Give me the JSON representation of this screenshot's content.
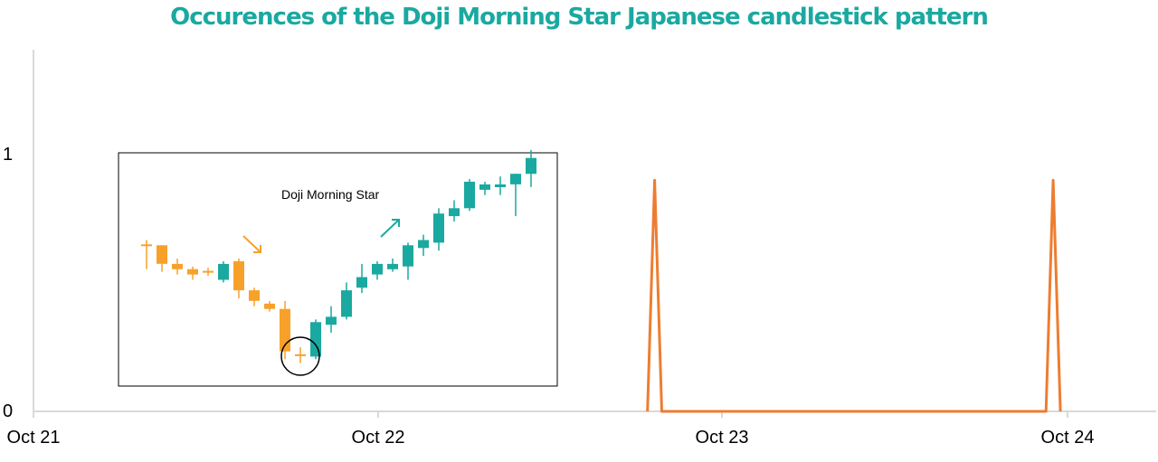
{
  "chart_data": {
    "type": "line",
    "title": "Occurences of the Doji Morning Star Japanese candlestick pattern",
    "x_tick_labels": [
      "Oct 21",
      "Oct 22",
      "Oct 23",
      "Oct 24"
    ],
    "y_tick_labels": [
      "0",
      "1"
    ],
    "ylim": [
      0,
      1.4
    ],
    "grid": false,
    "series": [
      {
        "color": "#ed7d31",
        "points": [
          {
            "x": "Oct 22 18:45",
            "y": 0
          },
          {
            "x": "Oct 22 19:15",
            "y": 0.9
          },
          {
            "x": "Oct 22 19:45",
            "y": 0
          },
          {
            "x": "Oct 23 22:30",
            "y": 0
          },
          {
            "x": "Oct 23 23:00",
            "y": 0.9
          },
          {
            "x": "Oct 23 23:30",
            "y": 0
          }
        ]
      }
    ],
    "inset": {
      "label": "Doji Morning Star",
      "colors": {
        "bearish": "#f7a12a",
        "bullish": "#1aa9a0",
        "frame": "#000000"
      },
      "candles": [
        {
          "o": 0.62,
          "c": 0.62,
          "h": 0.64,
          "l": 0.53
        },
        {
          "o": 0.62,
          "c": 0.55,
          "h": 0.62,
          "l": 0.52
        },
        {
          "o": 0.55,
          "c": 0.53,
          "h": 0.57,
          "l": 0.51
        },
        {
          "o": 0.53,
          "c": 0.51,
          "h": 0.54,
          "l": 0.49
        },
        {
          "o": 0.52,
          "c": 0.52,
          "h": 0.535,
          "l": 0.505
        },
        {
          "o": 0.49,
          "c": 0.55,
          "h": 0.56,
          "l": 0.48
        },
        {
          "o": 0.56,
          "c": 0.45,
          "h": 0.57,
          "l": 0.42
        },
        {
          "o": 0.45,
          "c": 0.41,
          "h": 0.46,
          "l": 0.39
        },
        {
          "o": 0.4,
          "c": 0.38,
          "h": 0.41,
          "l": 0.37
        },
        {
          "o": 0.38,
          "c": 0.22,
          "h": 0.41,
          "l": 0.19
        },
        {
          "o": 0.205,
          "c": 0.205,
          "h": 0.235,
          "l": 0.175
        },
        {
          "o": 0.2,
          "c": 0.33,
          "h": 0.34,
          "l": 0.19
        },
        {
          "o": 0.32,
          "c": 0.35,
          "h": 0.39,
          "l": 0.29
        },
        {
          "o": 0.35,
          "c": 0.45,
          "h": 0.48,
          "l": 0.34
        },
        {
          "o": 0.46,
          "c": 0.5,
          "h": 0.55,
          "l": 0.44
        },
        {
          "o": 0.51,
          "c": 0.55,
          "h": 0.56,
          "l": 0.49
        },
        {
          "o": 0.55,
          "c": 0.53,
          "h": 0.57,
          "l": 0.52
        },
        {
          "o": 0.54,
          "c": 0.62,
          "h": 0.63,
          "l": 0.49
        },
        {
          "o": 0.61,
          "c": 0.64,
          "h": 0.66,
          "l": 0.58
        },
        {
          "o": 0.63,
          "c": 0.74,
          "h": 0.76,
          "l": 0.6
        },
        {
          "o": 0.73,
          "c": 0.76,
          "h": 0.79,
          "l": 0.71
        },
        {
          "o": 0.76,
          "c": 0.86,
          "h": 0.87,
          "l": 0.75
        },
        {
          "o": 0.83,
          "c": 0.85,
          "h": 0.86,
          "l": 0.81
        },
        {
          "o": 0.84,
          "c": 0.85,
          "h": 0.88,
          "l": 0.81
        },
        {
          "o": 0.85,
          "c": 0.89,
          "h": 0.89,
          "l": 0.73
        },
        {
          "o": 0.89,
          "c": 0.95,
          "h": 0.98,
          "l": 0.84
        }
      ]
    }
  }
}
